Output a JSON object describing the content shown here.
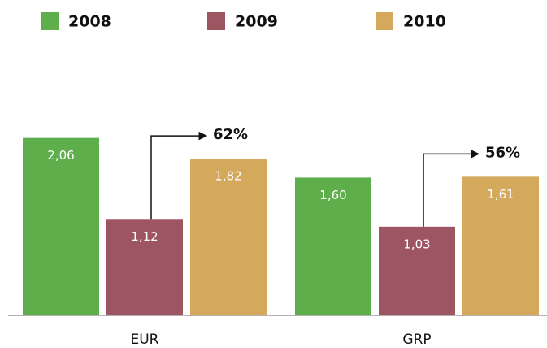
{
  "chart_data": {
    "type": "bar",
    "categories": [
      "EUR",
      "GRP"
    ],
    "series": [
      {
        "name": "2008",
        "color": "#5fae4c",
        "values": [
          2.06,
          1.6
        ],
        "value_labels": [
          "2,06",
          "1,60"
        ]
      },
      {
        "name": "2009",
        "color": "#9c5561",
        "values": [
          1.12,
          1.03
        ],
        "value_labels": [
          "1,12",
          "1,03"
        ]
      },
      {
        "name": "2010",
        "color": "#d4a95c",
        "values": [
          1.82,
          1.61
        ],
        "value_labels": [
          "1,82",
          "1,61"
        ]
      }
    ],
    "annotations": [
      "62%",
      "56%"
    ]
  }
}
